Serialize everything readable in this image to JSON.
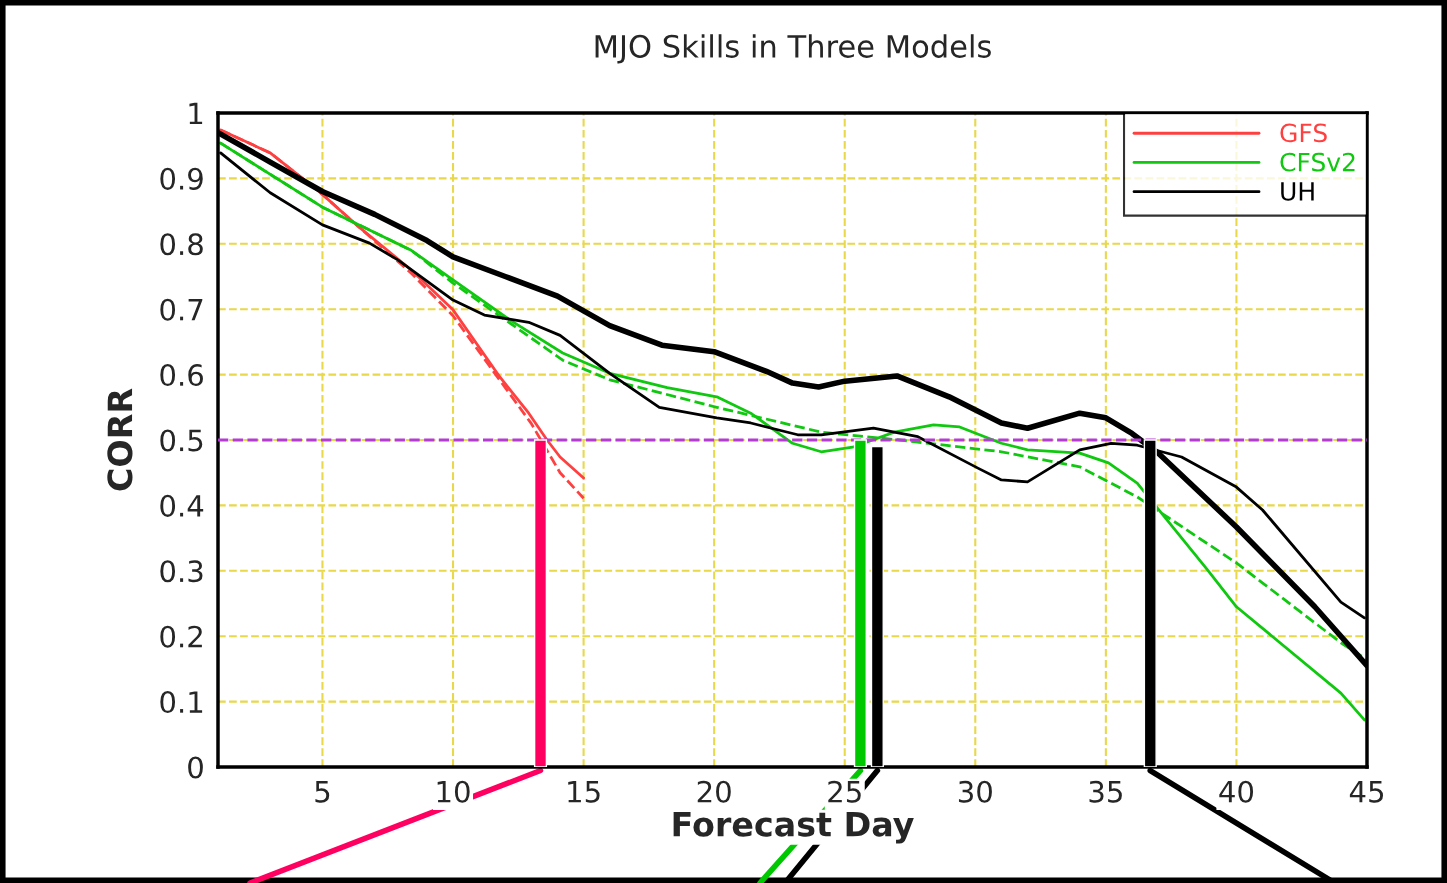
{
  "chart_data": {
    "type": "line",
    "title": "MJO Skills in Three Models",
    "xlabel": "Forecast Day",
    "ylabel": "CORR",
    "xlim": [
      1,
      45
    ],
    "xticks": [
      5,
      10,
      15,
      20,
      25,
      30,
      35,
      40,
      45
    ],
    "ylim": [
      0,
      1
    ],
    "yticks": [
      0,
      0.1,
      0.2,
      0.3,
      0.4,
      0.5,
      0.6,
      0.7,
      0.8,
      0.9,
      1
    ],
    "grid": true,
    "legend": "top right",
    "ref_lines": [
      {
        "axis": "y",
        "value": 0.5,
        "color": "#b43cd2",
        "line_style": "dashed"
      }
    ],
    "series": [
      {
        "name": "GFS",
        "color": "#ff4040",
        "line_style": "solid",
        "x": [
          1.1,
          3,
          4.9,
          6.3,
          8.4,
          10,
          11.8,
          12.9,
          13.6,
          14.1,
          15
        ],
        "values": [
          0.974,
          0.939,
          0.879,
          0.829,
          0.76,
          0.699,
          0.596,
          0.541,
          0.5,
          0.474,
          0.442
        ]
      },
      {
        "color": "#ff4040",
        "line_style": "dashed",
        "x": [
          1.1,
          3,
          4.9,
          6.3,
          8.4,
          10,
          12,
          13,
          14.1,
          15
        ],
        "values": [
          0.974,
          0.939,
          0.879,
          0.829,
          0.755,
          0.69,
          0.58,
          0.525,
          0.45,
          0.411
        ]
      },
      {
        "name": "CFSv2",
        "color": "#10c810",
        "line_style": "solid",
        "x": [
          1.1,
          5,
          8.4,
          10,
          12.2,
          14.2,
          16,
          18.2,
          20.1,
          21.4,
          23,
          24.1,
          25.3,
          26.9,
          28.4,
          29.4,
          31,
          32,
          34,
          35.1,
          36.2,
          38.9,
          40,
          44,
          44.9
        ],
        "values": [
          0.954,
          0.856,
          0.79,
          0.745,
          0.683,
          0.633,
          0.602,
          0.58,
          0.566,
          0.541,
          0.495,
          0.482,
          0.489,
          0.512,
          0.523,
          0.52,
          0.495,
          0.485,
          0.48,
          0.465,
          0.434,
          0.301,
          0.245,
          0.113,
          0.072
        ]
      },
      {
        "color": "#10c810",
        "line_style": "dashed",
        "x": [
          1.1,
          5,
          8.4,
          10,
          14.2,
          16,
          20.1,
          24.1,
          27.1,
          31,
          34,
          36.2,
          40,
          44,
          45
        ],
        "values": [
          0.954,
          0.856,
          0.79,
          0.74,
          0.622,
          0.592,
          0.55,
          0.512,
          0.5,
          0.482,
          0.459,
          0.413,
          0.312,
          0.19,
          0.164
        ]
      },
      {
        "name": "UH",
        "color": "#000000",
        "line_style": "solid",
        "x": [
          1,
          3,
          5,
          7,
          9,
          10,
          12,
          14,
          16,
          18,
          20,
          22,
          23,
          24,
          25,
          27,
          29,
          31,
          32,
          34,
          35,
          36,
          37,
          40,
          43,
          45
        ],
        "values": [
          0.97,
          0.925,
          0.88,
          0.845,
          0.805,
          0.78,
          0.75,
          0.72,
          0.675,
          0.645,
          0.635,
          0.605,
          0.587,
          0.581,
          0.59,
          0.598,
          0.566,
          0.526,
          0.518,
          0.541,
          0.534,
          0.51,
          0.48,
          0.367,
          0.245,
          0.155
        ]
      },
      {
        "color": "#000000",
        "line_style": "solid",
        "x": [
          1.1,
          3,
          5,
          6.8,
          7.9,
          10,
          11.2,
          12.9,
          14.1,
          16,
          17.9,
          20.1,
          21.4,
          23.2,
          24.1,
          26.1,
          27.8,
          30.1,
          31,
          32,
          34,
          35.2,
          36.2,
          37.9,
          40,
          41,
          44,
          44.9
        ],
        "values": [
          0.939,
          0.878,
          0.829,
          0.801,
          0.775,
          0.714,
          0.691,
          0.68,
          0.66,
          0.602,
          0.55,
          0.534,
          0.526,
          0.508,
          0.508,
          0.518,
          0.505,
          0.457,
          0.439,
          0.436,
          0.485,
          0.495,
          0.492,
          0.474,
          0.428,
          0.393,
          0.252,
          0.228
        ]
      },
      {
        "type": "bar",
        "color": "#ff0060",
        "x": [
          13.35
        ],
        "values": [
          0.5
        ]
      },
      {
        "type": "bar",
        "color": "#00c800",
        "x": [
          25.6
        ],
        "values": [
          0.5
        ]
      },
      {
        "type": "bar",
        "color": "#000000",
        "x": [
          26.25
        ],
        "values": [
          0.49
        ]
      },
      {
        "type": "bar",
        "color": "#000000",
        "x": [
          36.7
        ],
        "values": [
          0.5
        ]
      }
    ]
  }
}
